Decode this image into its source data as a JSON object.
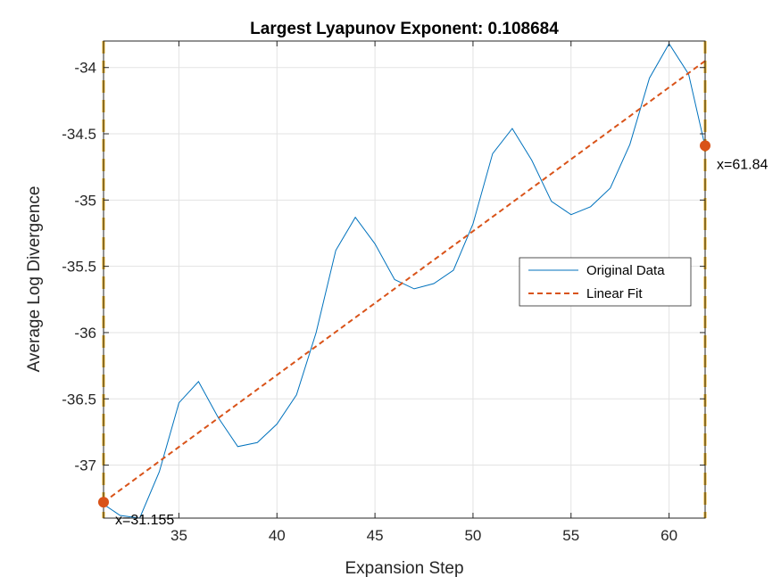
{
  "chart_data": {
    "type": "line",
    "title": "Largest Lyapunov Exponent: 0.108684",
    "xlabel": "Expansion Step",
    "ylabel": "Average Log Divergence",
    "xlim": [
      31.155,
      61.84
    ],
    "ylim": [
      -37.4,
      -33.8
    ],
    "xticks": [
      35,
      40,
      45,
      50,
      55,
      60
    ],
    "xtick_labels": [
      "35",
      "40",
      "45",
      "50",
      "55",
      "60"
    ],
    "yticks": [
      -34,
      -34.5,
      -35,
      -35.5,
      -36,
      -36.5,
      -37
    ],
    "ytick_labels": [
      "-34",
      "-34.5",
      "-35",
      "-35.5",
      "-36",
      "-36.5",
      "-37"
    ],
    "grid": true,
    "legend_position": "right",
    "series": [
      {
        "name": "Original Data",
        "color": "#0072BD",
        "style": "solid",
        "x": [
          31,
          32,
          33,
          34,
          35,
          36,
          37,
          38,
          39,
          40,
          41,
          42,
          43,
          44,
          45,
          46,
          47,
          48,
          49,
          50,
          51,
          52,
          53,
          54,
          55,
          56,
          57,
          58,
          59,
          60,
          61,
          62
        ],
        "y": [
          -37.28,
          -37.38,
          -37.4,
          -37.05,
          -36.53,
          -36.37,
          -36.64,
          -36.86,
          -36.83,
          -36.69,
          -36.47,
          -36.0,
          -35.38,
          -35.13,
          -35.33,
          -35.6,
          -35.67,
          -35.63,
          -35.53,
          -35.18,
          -34.65,
          -34.46,
          -34.7,
          -35.01,
          -35.11,
          -35.05,
          -34.91,
          -34.58,
          -34.08,
          -33.82,
          -34.05,
          -34.7
        ]
      },
      {
        "name": "Linear Fit",
        "color": "#D95319",
        "style": "dashed",
        "x": [
          31.155,
          61.84
        ],
        "y": [
          -37.28,
          -33.95
        ]
      }
    ],
    "markers": [
      {
        "x": 31.155,
        "y": -37.28,
        "label": "x=31.155",
        "color": "#D95319"
      },
      {
        "x": 61.84,
        "y": -34.59,
        "label": "x=61.84",
        "color": "#D95319"
      }
    ],
    "vlines": [
      {
        "x": 31.155,
        "color": "#EDB120",
        "style": "dashed"
      },
      {
        "x": 61.84,
        "color": "#EDB120",
        "style": "dashed"
      }
    ]
  }
}
